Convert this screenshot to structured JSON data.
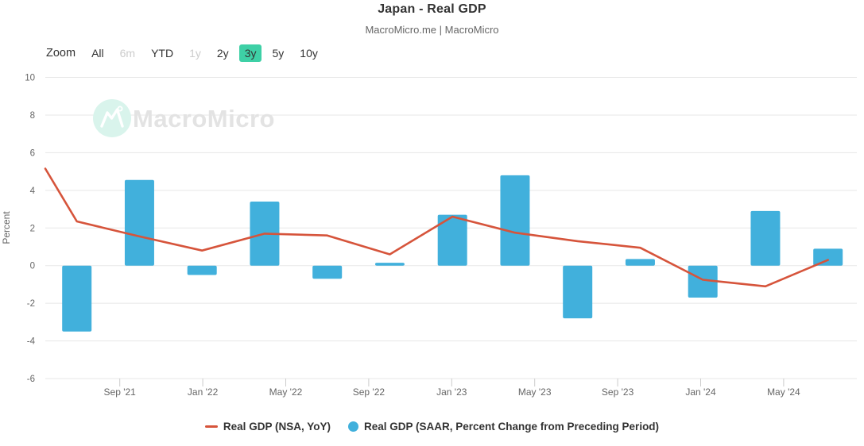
{
  "header": {
    "title": "Japan - Real GDP",
    "subtitle": "MacroMicro.me | MacroMicro"
  },
  "toolbar": {
    "zoom_label": "Zoom",
    "ranges": [
      {
        "label": "All",
        "state": "enabled"
      },
      {
        "label": "6m",
        "state": "disabled"
      },
      {
        "label": "YTD",
        "state": "enabled"
      },
      {
        "label": "1y",
        "state": "disabled"
      },
      {
        "label": "2y",
        "state": "enabled"
      },
      {
        "label": "3y",
        "state": "selected"
      },
      {
        "label": "5y",
        "state": "enabled"
      },
      {
        "label": "10y",
        "state": "enabled"
      }
    ]
  },
  "watermark": {
    "text": "MacroMicro",
    "logo": "macromicro-mountain-logo",
    "circle_color": "#d9f4ec",
    "logo_stroke_color": "#ffffff",
    "text_color": "#e3e3e3"
  },
  "chart_data": {
    "type": "combo",
    "categories": [
      "2021 Q3",
      "2021 Q4",
      "2022 Q1",
      "2022 Q2",
      "2022 Q3",
      "2022 Q4",
      "2023 Q1",
      "2023 Q2",
      "2023 Q3",
      "2023 Q4",
      "2024 Q1",
      "2024 Q2",
      "2024 Q3"
    ],
    "series": [
      {
        "name": "Real GDP (NSA, YoY)",
        "type": "line",
        "color": "#d6543b",
        "edge_start_value": 5.15,
        "values": [
          2.35,
          1.55,
          0.8,
          1.7,
          1.6,
          0.6,
          2.6,
          1.75,
          1.3,
          0.95,
          -0.75,
          -1.1,
          0.3
        ]
      },
      {
        "name": "Real GDP (SAAR, Percent Change from Preceding Period)",
        "type": "bar",
        "color": "#41b0dc",
        "values": [
          -3.5,
          4.55,
          -0.5,
          3.4,
          -0.7,
          0.15,
          2.7,
          4.8,
          -2.8,
          0.35,
          -1.7,
          2.9,
          0.9
        ]
      }
    ],
    "title": "Japan - Real GDP",
    "xlabel": "",
    "ylabel": "Percent",
    "x_tick_labels": [
      "Sep '21",
      "Jan '22",
      "May '22",
      "Sep '22",
      "Jan '23",
      "May '23",
      "Sep '23",
      "Jan '24",
      "May '24"
    ],
    "y_ticks": [
      10,
      8,
      6,
      4,
      2,
      0,
      -2,
      -4,
      -6
    ],
    "ylim": [
      -6,
      10
    ],
    "grid": "horizontal",
    "legend_position": "bottom"
  },
  "legend": {
    "items": [
      {
        "label": "Real GDP (NSA, YoY)",
        "swatch": "line",
        "color": "#d6543b"
      },
      {
        "label": "Real GDP (SAAR, Percent Change from Preceding Period)",
        "swatch": "circle",
        "color": "#41b0dc"
      }
    ]
  },
  "colors": {
    "accent_selected": "#3ed0a6",
    "bar": "#41b0dc",
    "line": "#d6543b",
    "gridline": "#e7e7e7",
    "tick_mark": "#cccccc",
    "axis_text": "#666666",
    "title_text": "#333333",
    "disabled_text": "#cccccc"
  }
}
